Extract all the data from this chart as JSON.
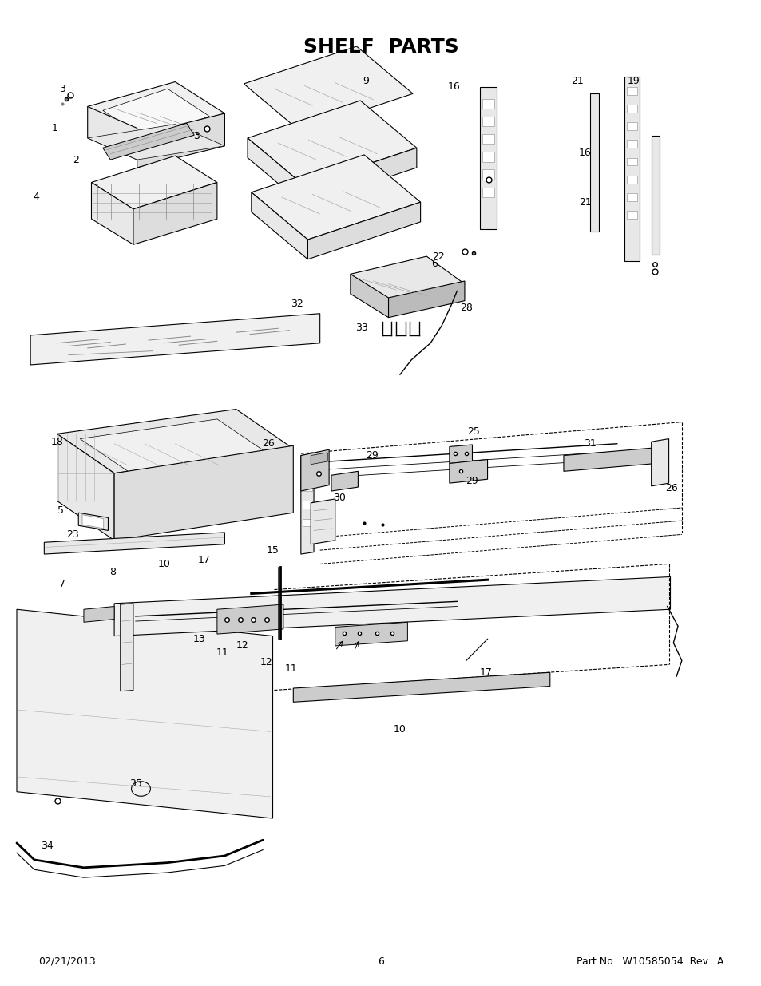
{
  "title": "SHELF  PARTS",
  "footer_left": "02/21/2013",
  "footer_center": "6",
  "footer_right": "Part No.  W10585054  Rev.  A",
  "bg_color": "#ffffff",
  "title_fontsize": 18,
  "footer_fontsize": 9,
  "figwidth": 9.54,
  "figheight": 12.35,
  "dpi": 100
}
